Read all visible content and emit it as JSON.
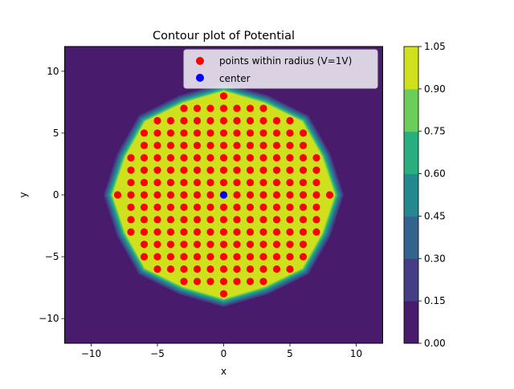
{
  "chart_data": {
    "type": "contour",
    "title": "Contour plot of Potential",
    "xlabel": "x",
    "ylabel": "y",
    "xlim": [
      -12,
      12
    ],
    "ylim": [
      -12,
      12
    ],
    "xticks": [
      -10,
      -5,
      0,
      5,
      10
    ],
    "yticks": [
      -10,
      -5,
      0,
      5,
      10
    ],
    "xtick_labels": [
      "−10",
      "−5",
      "0",
      "5",
      "10"
    ],
    "ytick_labels": [
      "−10",
      "−5",
      "0",
      "5",
      "10"
    ],
    "grid": false,
    "radius": 8,
    "contour_levels": [
      0.0,
      0.15,
      0.3,
      0.45,
      0.6,
      0.75,
      0.9,
      1.05
    ],
    "colorbar": {
      "tick_labels": [
        "0.00",
        "0.15",
        "0.30",
        "0.45",
        "0.60",
        "0.75",
        "0.90",
        "1.05"
      ],
      "colors": [
        "#481b6d",
        "#433e85",
        "#32648e",
        "#23898e",
        "#29af7f",
        "#6ccd5a",
        "#cfe11c"
      ]
    },
    "outside_value": 0.0,
    "inside_value": 1.0,
    "legend": {
      "placement": "top-right",
      "entries": [
        {
          "label": "points within radius (V=1V)",
          "color": "#ff0000",
          "marker": "circle"
        },
        {
          "label": "center",
          "color": "#0000ff",
          "marker": "circle"
        }
      ]
    },
    "series": [
      {
        "name": "points within radius (V=1V)",
        "color": "#ff0000",
        "points_rule": "all integer (x, y) with x^2 + y^2 <= 64",
        "rows": [
          {
            "y": 8,
            "x": [
              0
            ]
          },
          {
            "y": 7,
            "x": [
              -3,
              -2,
              -1,
              0,
              1,
              2,
              3
            ]
          },
          {
            "y": 6,
            "x": [
              -5,
              -4,
              -3,
              -2,
              -1,
              0,
              1,
              2,
              3,
              4,
              5
            ]
          },
          {
            "y": 5,
            "x": [
              -6,
              -5,
              -4,
              -3,
              -2,
              -1,
              0,
              1,
              2,
              3,
              4,
              5,
              6
            ]
          },
          {
            "y": 4,
            "x": [
              -6,
              -5,
              -4,
              -3,
              -2,
              -1,
              0,
              1,
              2,
              3,
              4,
              5,
              6
            ]
          },
          {
            "y": 3,
            "x": [
              -7,
              -6,
              -5,
              -4,
              -3,
              -2,
              -1,
              0,
              1,
              2,
              3,
              4,
              5,
              6,
              7
            ]
          },
          {
            "y": 2,
            "x": [
              -7,
              -6,
              -5,
              -4,
              -3,
              -2,
              -1,
              0,
              1,
              2,
              3,
              4,
              5,
              6,
              7
            ]
          },
          {
            "y": 1,
            "x": [
              -7,
              -6,
              -5,
              -4,
              -3,
              -2,
              -1,
              0,
              1,
              2,
              3,
              4,
              5,
              6,
              7
            ]
          },
          {
            "y": 0,
            "x": [
              -8,
              -7,
              -6,
              -5,
              -4,
              -3,
              -2,
              -1,
              0,
              1,
              2,
              3,
              4,
              5,
              6,
              7,
              8
            ]
          },
          {
            "y": -1,
            "x": [
              -7,
              -6,
              -5,
              -4,
              -3,
              -2,
              -1,
              0,
              1,
              2,
              3,
              4,
              5,
              6,
              7
            ]
          },
          {
            "y": -2,
            "x": [
              -7,
              -6,
              -5,
              -4,
              -3,
              -2,
              -1,
              0,
              1,
              2,
              3,
              4,
              5,
              6,
              7
            ]
          },
          {
            "y": -3,
            "x": [
              -7,
              -6,
              -5,
              -4,
              -3,
              -2,
              -1,
              0,
              1,
              2,
              3,
              4,
              5,
              6,
              7
            ]
          },
          {
            "y": -4,
            "x": [
              -6,
              -5,
              -4,
              -3,
              -2,
              -1,
              0,
              1,
              2,
              3,
              4,
              5,
              6
            ]
          },
          {
            "y": -5,
            "x": [
              -6,
              -5,
              -4,
              -3,
              -2,
              -1,
              0,
              1,
              2,
              3,
              4,
              5,
              6
            ]
          },
          {
            "y": -6,
            "x": [
              -5,
              -4,
              -3,
              -2,
              -1,
              0,
              1,
              2,
              3,
              4,
              5
            ]
          },
          {
            "y": -7,
            "x": [
              -3,
              -2,
              -1,
              0,
              1,
              2,
              3
            ]
          },
          {
            "y": -8,
            "x": [
              0
            ]
          }
        ]
      },
      {
        "name": "center",
        "color": "#0000ff",
        "points": [
          [
            0,
            0
          ]
        ]
      }
    ]
  }
}
